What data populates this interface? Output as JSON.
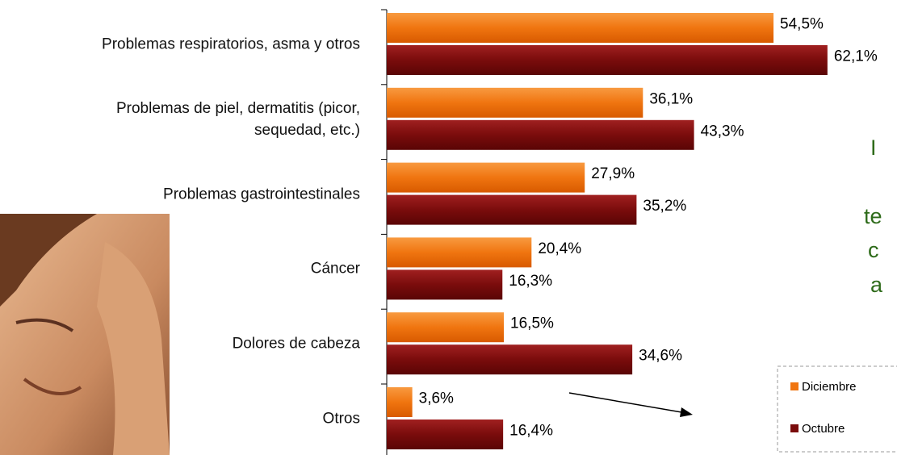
{
  "chart_data": {
    "type": "bar",
    "orientation": "horizontal",
    "categories": [
      "Problemas respiratorios, asma y otros",
      "Problemas de piel, dermatitis (picor,\nsequedad, etc.)",
      "Problemas gastrointestinales",
      "Cáncer",
      "Dolores de cabeza",
      "Otros"
    ],
    "series": [
      {
        "name": "Diciembre",
        "color": "#f07510",
        "values": [
          54.5,
          36.1,
          27.9,
          20.4,
          16.5,
          3.6
        ],
        "value_labels": [
          "54,5%",
          "36,1%",
          "27,9%",
          "20,4%",
          "16,5%",
          "3,6%"
        ]
      },
      {
        "name": "Octubre",
        "color": "#7a0c0c",
        "values": [
          62.1,
          43.3,
          35.2,
          16.3,
          34.6,
          16.4
        ],
        "value_labels": [
          "62,1%",
          "43,3%",
          "35,2%",
          "16,3%",
          "34,6%",
          "16,4%"
        ]
      }
    ],
    "annotations": [
      "I",
      "te",
      "c",
      "a"
    ]
  }
}
